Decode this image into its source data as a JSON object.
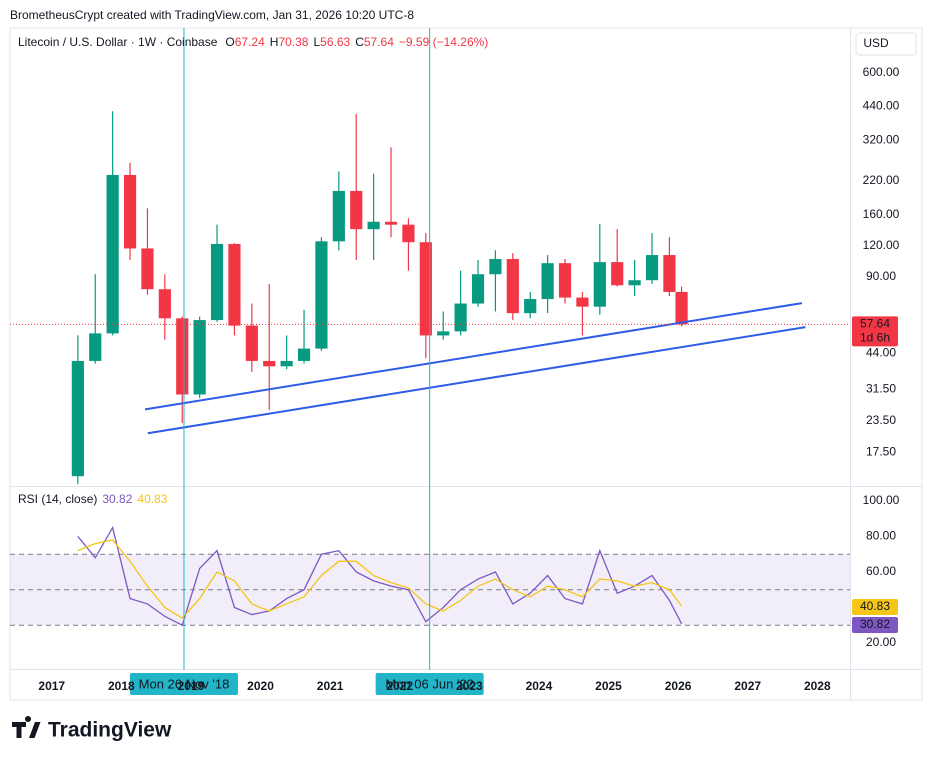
{
  "header": {
    "attribution": "BrometheusCrypt created with TradingView.com, Jan 31, 2026 10:20 UTC-8"
  },
  "footer": {
    "logo": "TradingView"
  },
  "chart_data": [
    {
      "type": "candlestick",
      "title": "Litecoin / U.S. Dollar · 1W · Coinbase",
      "ohlc_legend": [
        {
          "key": "O",
          "value": "67.24"
        },
        {
          "key": "H",
          "value": "70.38"
        },
        {
          "key": "L",
          "value": "56.63"
        },
        {
          "key": "C",
          "value": "57.64"
        }
      ],
      "change": "−9.59 (−14.26%)",
      "currency": "USD",
      "log_scale": true,
      "up_color": "#089981",
      "down_color": "#f23645",
      "x": [
        2017.375,
        2017.625,
        2017.875,
        2018.125,
        2018.375,
        2018.625,
        2018.875,
        2019.125,
        2019.375,
        2019.625,
        2019.875,
        2020.125,
        2020.375,
        2020.625,
        2020.875,
        2021.125,
        2021.375,
        2021.625,
        2021.875,
        2022.125,
        2022.375,
        2022.625,
        2022.875,
        2023.125,
        2023.375,
        2023.625,
        2023.875,
        2024.125,
        2024.375,
        2024.625,
        2024.875,
        2025.125,
        2025.375,
        2025.625,
        2025.875,
        2026.05
      ],
      "open": [
        14,
        41,
        53,
        232,
        117,
        80,
        61,
        30,
        60,
        122,
        57,
        41,
        39,
        41,
        46,
        125,
        200,
        140,
        150,
        146,
        124,
        52,
        54,
        70,
        92,
        106,
        64,
        73,
        102,
        74,
        68,
        103,
        83,
        87,
        110,
        78
      ],
      "high": [
        52,
        92,
        420,
        260,
        170,
        92,
        62,
        62,
        146,
        123,
        70,
        84,
        52,
        66,
        130,
        240,
        410,
        235,
        300,
        155,
        135,
        65,
        95,
        105,
        115,
        112,
        78,
        110,
        106,
        78,
        147,
        140,
        105,
        135,
        130,
        82
      ],
      "low": [
        13,
        40,
        52,
        105,
        76,
        50,
        23,
        29,
        59,
        52,
        37,
        26,
        38,
        40,
        45,
        115,
        105,
        105,
        130,
        95,
        42,
        50,
        52,
        68,
        65,
        60,
        61,
        64,
        70,
        52,
        63,
        82,
        75,
        84,
        75,
        56.63
      ],
      "close": [
        41,
        53,
        232,
        117,
        80,
        61,
        30,
        60,
        122,
        57,
        41,
        39,
        41,
        46,
        125,
        200,
        140,
        150,
        146,
        124,
        52,
        54,
        70,
        92,
        106,
        64,
        73,
        102,
        74,
        68,
        103,
        83,
        87,
        110,
        78,
        57.64
      ],
      "xlim": [
        2016.4,
        2028.47
      ],
      "xticks": [
        2017,
        2018,
        2019,
        2020,
        2021,
        2022,
        2023,
        2024,
        2025,
        2026,
        2027,
        2028
      ],
      "ylim": [
        12.9,
        913
      ],
      "yticks": [
        {
          "value": 600,
          "label": "600.00"
        },
        {
          "value": 440,
          "label": "440.00"
        },
        {
          "value": 320,
          "label": "320.00"
        },
        {
          "value": 220,
          "label": "220.00"
        },
        {
          "value": 160,
          "label": "160.00"
        },
        {
          "value": 120,
          "label": "120.00"
        },
        {
          "value": 90,
          "label": "90.00"
        },
        {
          "value": 44,
          "label": "44.00"
        },
        {
          "value": 31.5,
          "label": "31.50"
        },
        {
          "value": 23.5,
          "label": "23.50"
        },
        {
          "value": 17.5,
          "label": "17.50"
        }
      ],
      "trendlines": [
        {
          "color": "#2f5ce6",
          "x": [
            2018.34,
            2027.78
          ],
          "y": [
            26.1,
            70.3
          ]
        },
        {
          "color": "#2f5ce6",
          "x": [
            2018.38,
            2027.83
          ],
          "y": [
            20.9,
            56.2
          ]
        }
      ],
      "last_price": {
        "value": 57.64,
        "label": "57.64",
        "countdown": "1d 6h",
        "color": "#f23645"
      },
      "crosshair": [
        {
          "x": 2018.9,
          "label": "Mon 26 Nov '18"
        },
        {
          "x": 2022.43,
          "label": "Mon 06 Jun '22"
        }
      ],
      "crosshair_color": "#22b5c8"
    },
    {
      "type": "line",
      "title": "RSI (14, close)",
      "ylim": [
        5.9,
        107.3
      ],
      "yticks": [
        {
          "value": 100,
          "label": "100.00"
        },
        {
          "value": 80,
          "label": "80.00"
        },
        {
          "value": 60,
          "label": "60.00"
        },
        {
          "value": 20,
          "label": "20.00"
        }
      ],
      "bands": [
        70,
        50,
        30
      ],
      "band_color": "#7e57c2",
      "series": [
        {
          "color": "#7e57c2",
          "last_label": "30.82",
          "values": [
            80,
            68,
            85,
            45,
            42,
            35,
            30,
            62,
            72,
            40,
            36,
            38,
            45,
            50,
            70,
            72,
            60,
            55,
            52,
            50,
            32,
            40,
            50,
            56,
            60,
            42,
            48,
            58,
            45,
            42,
            72,
            48,
            52,
            58,
            44,
            30.82
          ]
        },
        {
          "color": "#f5c518",
          "last_label": "40.83",
          "values": [
            72,
            76,
            78,
            66,
            52,
            40,
            34,
            45,
            60,
            55,
            42,
            38,
            42,
            46,
            58,
            66,
            66,
            58,
            54,
            51,
            42,
            38,
            44,
            52,
            56,
            50,
            46,
            52,
            50,
            46,
            56,
            55,
            52,
            54,
            50,
            40.83
          ]
        }
      ]
    }
  ]
}
